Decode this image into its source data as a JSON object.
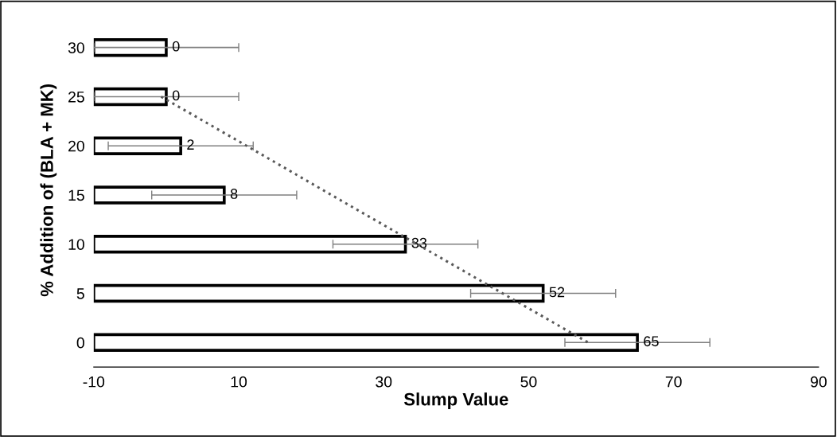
{
  "chart_data": {
    "type": "bar",
    "orientation": "horizontal",
    "xlabel": "Slump Value",
    "ylabel": "% Addition of (BLA + MK)",
    "categories": [
      "30",
      "25",
      "20",
      "15",
      "10",
      "5",
      "0"
    ],
    "series": [
      {
        "color": "#ffffff",
        "base": [
          -10,
          -10,
          -10,
          -10,
          -10,
          -10,
          -10
        ],
        "values": [
          10,
          10,
          12,
          18,
          43,
          62,
          75
        ],
        "value_labels": [
          "0",
          "0",
          "2",
          "8",
          "33",
          "52",
          "65"
        ],
        "errors": [
          10,
          10,
          10,
          10,
          10,
          10,
          10
        ]
      },
      {
        "type": "line",
        "color": "#595959",
        "line_style": "dotted",
        "marker": "none",
        "values": [
          null,
          -0.7,
          11.1,
          22.8,
          34.6,
          46.4,
          58.2
        ]
      }
    ],
    "xlim": [
      -10,
      90
    ],
    "xticks": [
      -10,
      10,
      30,
      50,
      70,
      90
    ],
    "grid": false,
    "legend": false
  }
}
